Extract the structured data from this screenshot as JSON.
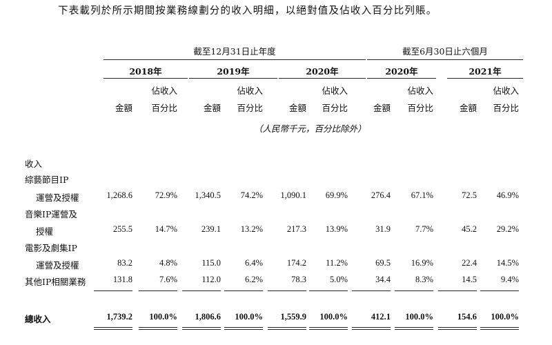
{
  "intro": "下表載列於所示期間按業務線劃分的收入明細，以絕對值及佔收入百分比列賬。",
  "header": {
    "group_annual": "截至12月31日止年度",
    "group_six_month": "截至6月30日止六個月",
    "years": [
      "2018年",
      "2019年",
      "2020年",
      "2020年",
      "2021年"
    ],
    "col_amount": "金額",
    "col_pct_line1": "佔收入",
    "col_pct_line2": "百分比",
    "unit_note": "（人民幣千元，百分比除外）"
  },
  "section_label": "收入",
  "rows": [
    {
      "label_lines": [
        "綜藝節目IP",
        "運營及授權"
      ],
      "values": [
        "1,268.6",
        "72.9%",
        "1,340.5",
        "74.2%",
        "1,090.1",
        "69.9%",
        "276.4",
        "67.1%",
        "72.5",
        "46.9%"
      ]
    },
    {
      "label_lines": [
        "音樂IP運營及",
        "授權"
      ],
      "values": [
        "255.5",
        "14.7%",
        "239.1",
        "13.2%",
        "217.3",
        "13.9%",
        "31.9",
        "7.7%",
        "45.2",
        "29.2%"
      ]
    },
    {
      "label_lines": [
        "電影及劇集IP",
        "運營及授權"
      ],
      "values": [
        "83.2",
        "4.8%",
        "115.0",
        "6.4%",
        "174.2",
        "11.2%",
        "69.5",
        "16.9%",
        "22.4",
        "14.5%"
      ]
    },
    {
      "label_lines": [
        "其他IP相關業務"
      ],
      "values": [
        "131.8",
        "7.6%",
        "112.0",
        "6.2%",
        "78.3",
        "5.0%",
        "34.4",
        "8.3%",
        "14.5",
        "9.4%"
      ]
    }
  ],
  "total": {
    "label": "總收入",
    "values": [
      "1,739.2",
      "100.0%",
      "1,806.6",
      "100.0%",
      "1,559.9",
      "100.0%",
      "412.1",
      "100.0%",
      "154.6",
      "100.0%"
    ]
  }
}
